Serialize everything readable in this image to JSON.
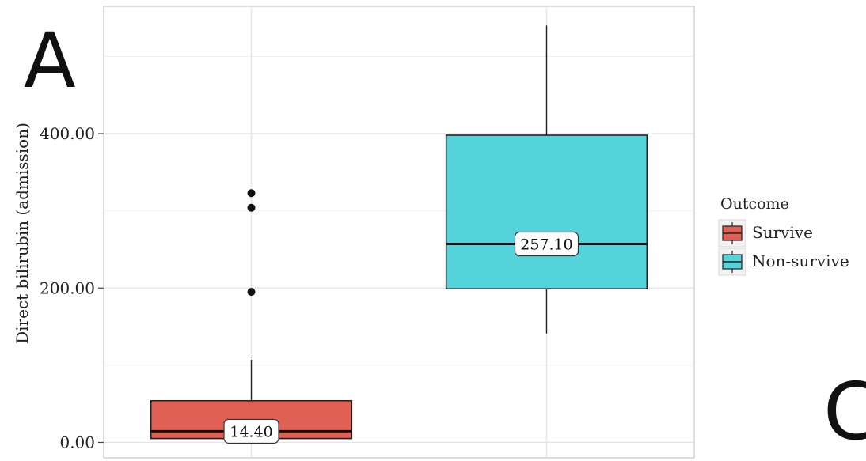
{
  "panel_letter": "A",
  "partial_panel_letter": "C",
  "chart_data": {
    "type": "box",
    "title": "",
    "xlabel": "",
    "ylabel": "Direct bilirubin (admission)",
    "ylim": [
      -20,
      565
    ],
    "yticks": [
      0,
      200,
      400
    ],
    "ytick_labels": [
      "0.00",
      "200.00",
      "400.00"
    ],
    "grid": true,
    "legend": {
      "title": "Outcome",
      "position": "right",
      "entries": [
        "Survive",
        "Non-survive"
      ]
    },
    "series": [
      {
        "name": "Survive",
        "color": "#E06055",
        "whisker_low": 5,
        "q1": 5,
        "median": 14.4,
        "q3": 54,
        "whisker_high": 107,
        "outliers": [
          195,
          304,
          323
        ],
        "median_label": "14.40"
      },
      {
        "name": "Non-survive",
        "color": "#55D3DB",
        "whisker_low": 141,
        "q1": 199,
        "median": 257.1,
        "q3": 398,
        "whisker_high": 540,
        "outliers": [],
        "median_label": "257.10"
      }
    ]
  }
}
